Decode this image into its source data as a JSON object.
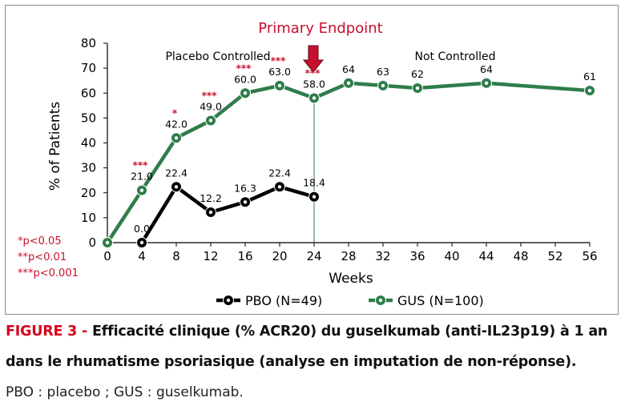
{
  "chart_data": {
    "type": "line",
    "title": "Primary Endpoint",
    "xlabel": "Weeks",
    "ylabel": "% of Patients",
    "xlim": [
      0,
      56
    ],
    "ylim": [
      0,
      80
    ],
    "xticks": [
      0,
      4,
      8,
      12,
      16,
      20,
      24,
      28,
      32,
      36,
      40,
      44,
      48,
      52,
      56
    ],
    "yticks": [
      0,
      10,
      20,
      30,
      40,
      50,
      60,
      70,
      80
    ],
    "grid": false,
    "legend_position": "bottom",
    "regions": {
      "left": "Placebo Controlled",
      "right": "Not Controlled",
      "divider_x": 24
    },
    "series": [
      {
        "name": "PBO (N=49)",
        "color": "#000000",
        "x": [
          4,
          8,
          12,
          16,
          20,
          24
        ],
        "y": [
          0.0,
          22.4,
          12.2,
          16.3,
          22.4,
          18.4
        ],
        "labels": [
          "0.0",
          "22.4",
          "12.2",
          "16.3",
          "22.4",
          "18.4"
        ]
      },
      {
        "name": "GUS (N=100)",
        "color": "#2e7d4a",
        "x": [
          0,
          4,
          8,
          12,
          16,
          20,
          24,
          28,
          32,
          36,
          44,
          56
        ],
        "y": [
          0,
          21.0,
          42.0,
          49.0,
          60.0,
          63.0,
          58.0,
          64,
          63,
          62,
          64,
          61
        ],
        "labels": [
          "",
          "21.0",
          "42.0",
          "49.0",
          "60.0",
          "63.0",
          "58.0",
          "64",
          "63",
          "62",
          "64",
          "61"
        ]
      }
    ],
    "significance": [
      {
        "x": 4,
        "mark": "***"
      },
      {
        "x": 8,
        "mark": "*"
      },
      {
        "x": 12,
        "mark": "***"
      },
      {
        "x": 16,
        "mark": "***"
      },
      {
        "x": 20,
        "mark": "***"
      },
      {
        "x": 24,
        "mark": "***"
      }
    ],
    "significance_key": [
      "*p<0.05",
      "**p<0.01",
      "***p<0.001"
    ],
    "accent_color": "#c8102e"
  },
  "caption": {
    "figure_label": "FIGURE 3 - ",
    "line1": "Efficacité clinique (% ACR20) du guselkumab (anti-IL23p19) à 1 an",
    "line2": "dans le rhumatisme psoriasique (analyse en imputation de non-réponse).",
    "line3": "PBO : placebo ; GUS : guselkumab."
  }
}
